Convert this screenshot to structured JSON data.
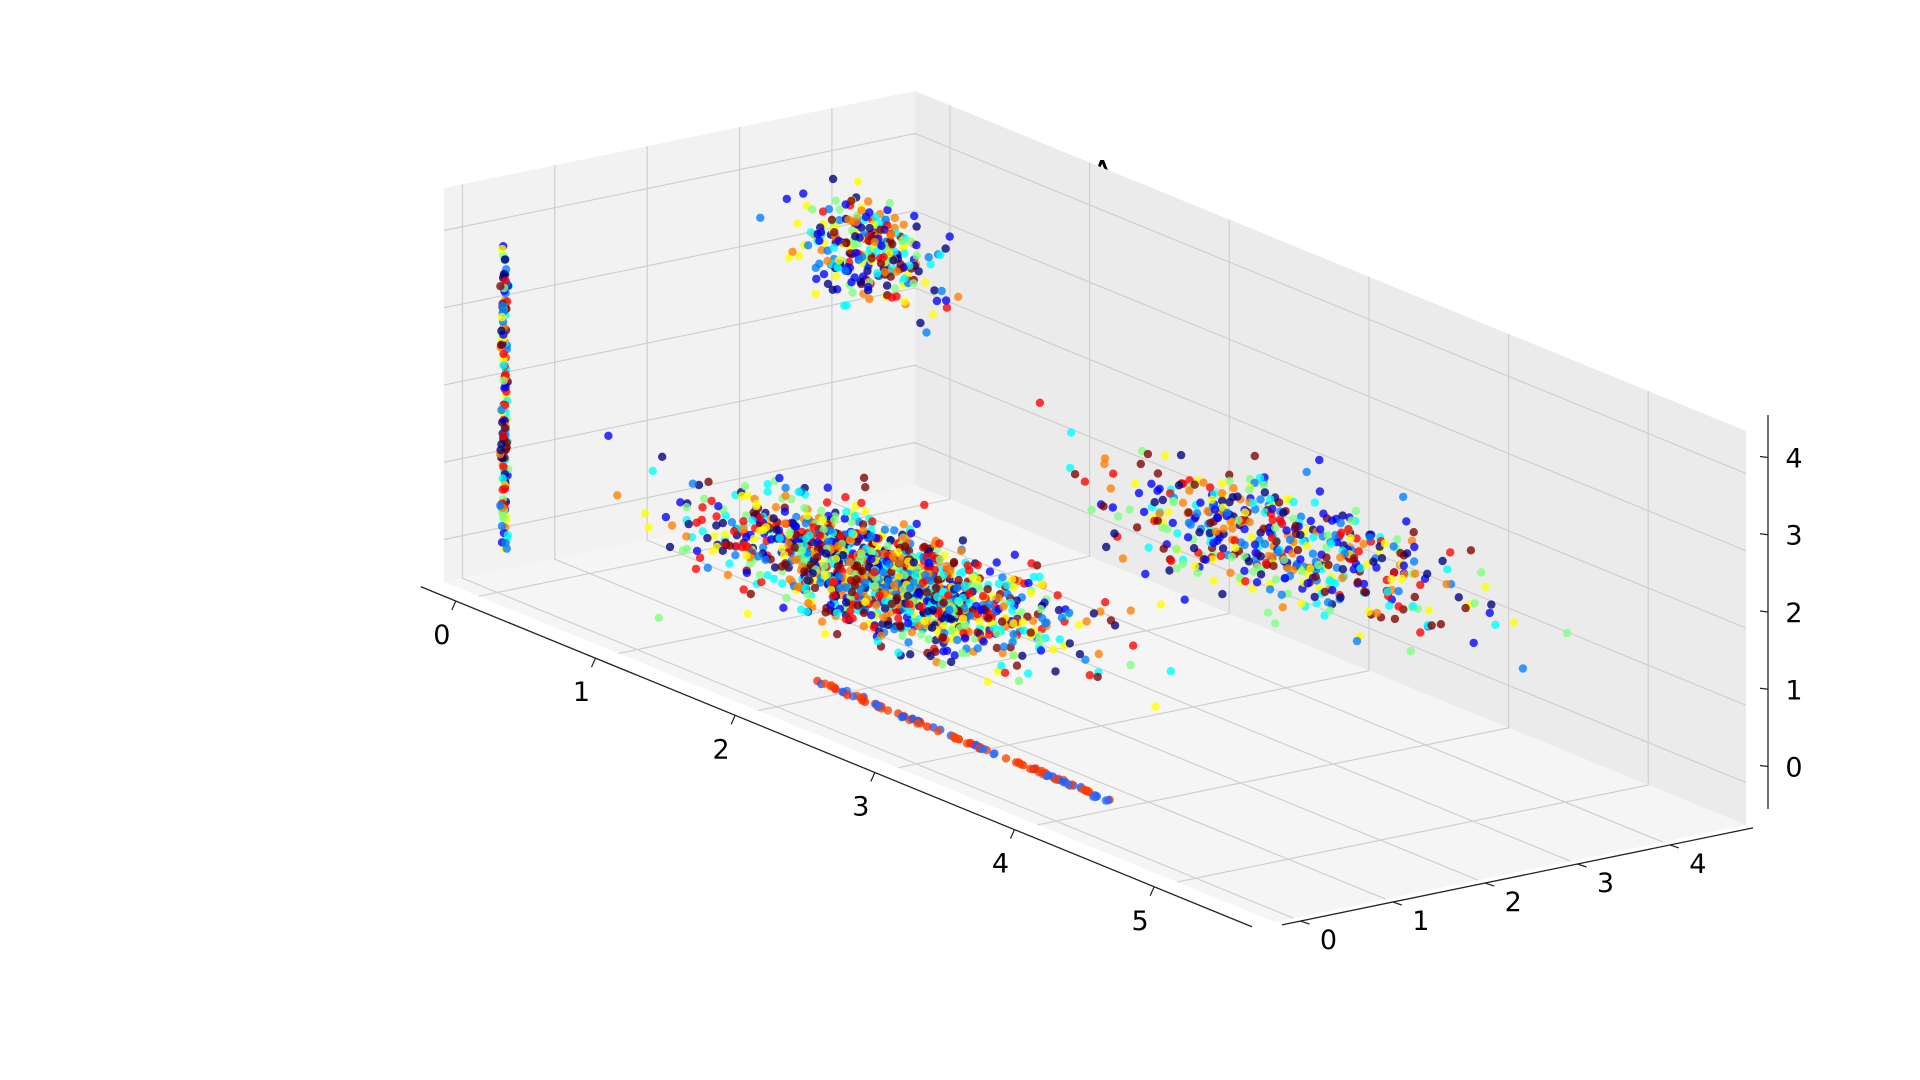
{
  "chart_data": {
    "type": "scatter",
    "projection": "3d",
    "title": "k-means with LDA",
    "xlabel": "",
    "ylabel": "",
    "zlabel": "",
    "xlim": [
      -0.25,
      5.7
    ],
    "ylim": [
      -0.2,
      4.9
    ],
    "zlim": [
      -0.55,
      4.55
    ],
    "x_ticks": [
      0,
      1,
      2,
      3,
      4,
      5
    ],
    "y_ticks": [
      0,
      1,
      2,
      3,
      4
    ],
    "z_ticks": [
      0,
      1,
      2,
      3,
      4
    ],
    "grid": true,
    "legend": "none",
    "colormap": "jet",
    "colormap_stops": [
      "#00007f",
      "#0000ff",
      "#007fff",
      "#00ffff",
      "#7fff7f",
      "#ffff00",
      "#ff7f00",
      "#ff0000",
      "#7f0000"
    ],
    "clusters": [
      {
        "shape": "blob",
        "center": [
          2.1,
          1.0,
          0.95
        ],
        "spread": [
          0.55,
          0.35,
          0.25
        ],
        "count": 1400,
        "colors": "mixed"
      },
      {
        "shape": "blob",
        "center": [
          3.0,
          4.0,
          1.3
        ],
        "spread": [
          0.55,
          0.4,
          0.3
        ],
        "count": 500,
        "colors": "mixed"
      },
      {
        "shape": "blob",
        "center": [
          0.55,
          3.2,
          3.5
        ],
        "spread": [
          0.2,
          0.2,
          0.3
        ],
        "count": 280,
        "colors": "mixed"
      },
      {
        "shape": "line",
        "from": [
          0.05,
          0.0,
          0.0
        ],
        "to": [
          0.05,
          0.0,
          4.0
        ],
        "count": 150,
        "colors": "mixed"
      },
      {
        "shape": "line",
        "from": [
          2.3,
          0.0,
          0.0
        ],
        "to": [
          4.4,
          0.0,
          0.0
        ],
        "count": 110,
        "colors": "red-blue"
      }
    ]
  }
}
